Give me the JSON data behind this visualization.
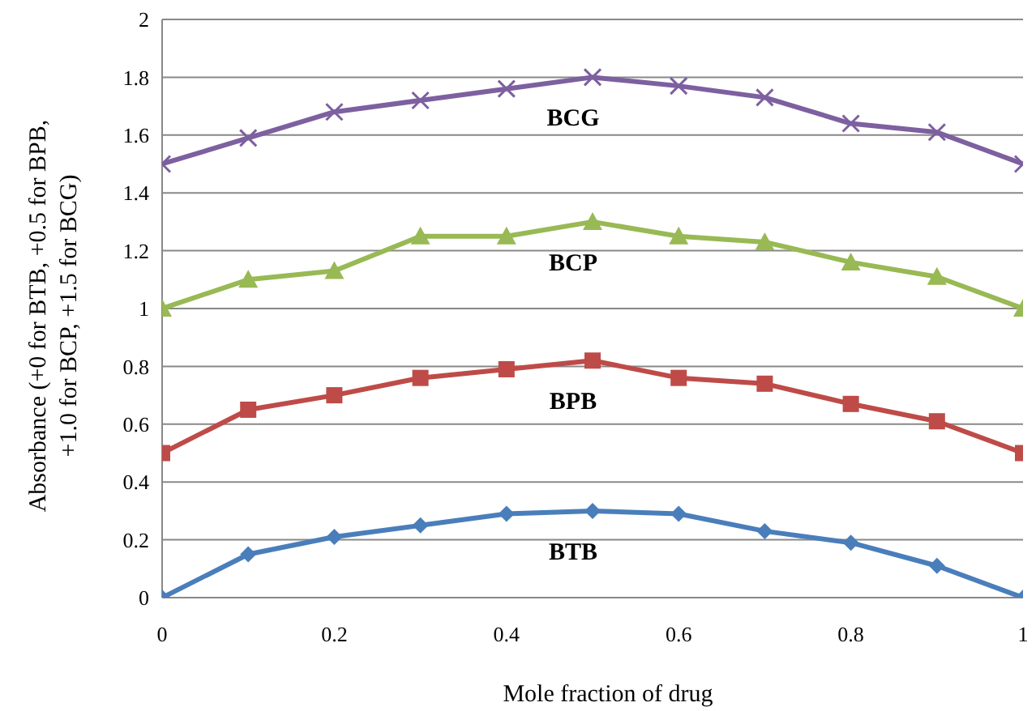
{
  "chart_data": {
    "type": "line",
    "xlabel": "Mole fraction of drug",
    "ylabel": "Absorbance (+0 for BTB, +0.5 for BPB, +1.0 for BCP, +1.5 for BCG)",
    "x": [
      0,
      0.1,
      0.2,
      0.3,
      0.4,
      0.5,
      0.6,
      0.7,
      0.8,
      0.9,
      1
    ],
    "series": [
      {
        "name": "BTB",
        "color": "#4a7ebb",
        "marker": "diamond",
        "values": [
          0,
          0.15,
          0.21,
          0.25,
          0.29,
          0.3,
          0.29,
          0.23,
          0.19,
          0.11,
          0
        ]
      },
      {
        "name": "BPB",
        "color": "#be4b48",
        "marker": "square",
        "values": [
          0.5,
          0.65,
          0.7,
          0.76,
          0.79,
          0.82,
          0.76,
          0.74,
          0.67,
          0.61,
          0.5
        ]
      },
      {
        "name": "BCP",
        "color": "#98b954",
        "marker": "triangle",
        "values": [
          1,
          1.1,
          1.13,
          1.25,
          1.25,
          1.3,
          1.25,
          1.23,
          1.16,
          1.11,
          1
        ]
      },
      {
        "name": "BCG",
        "color": "#7d60a0",
        "marker": "cross",
        "values": [
          1.5,
          1.59,
          1.68,
          1.72,
          1.76,
          1.8,
          1.77,
          1.73,
          1.64,
          1.61,
          1.5
        ]
      }
    ],
    "xlim": [
      0,
      1
    ],
    "xticks": [
      0,
      0.2,
      0.4,
      0.6,
      0.8,
      1
    ],
    "ylim": [
      0,
      2
    ],
    "yticks": [
      0,
      0.2,
      0.4,
      0.6,
      0.8,
      1,
      1.2,
      1.4,
      1.6,
      1.8,
      2
    ],
    "grid": "y",
    "legend": false,
    "line_style": "solid"
  }
}
